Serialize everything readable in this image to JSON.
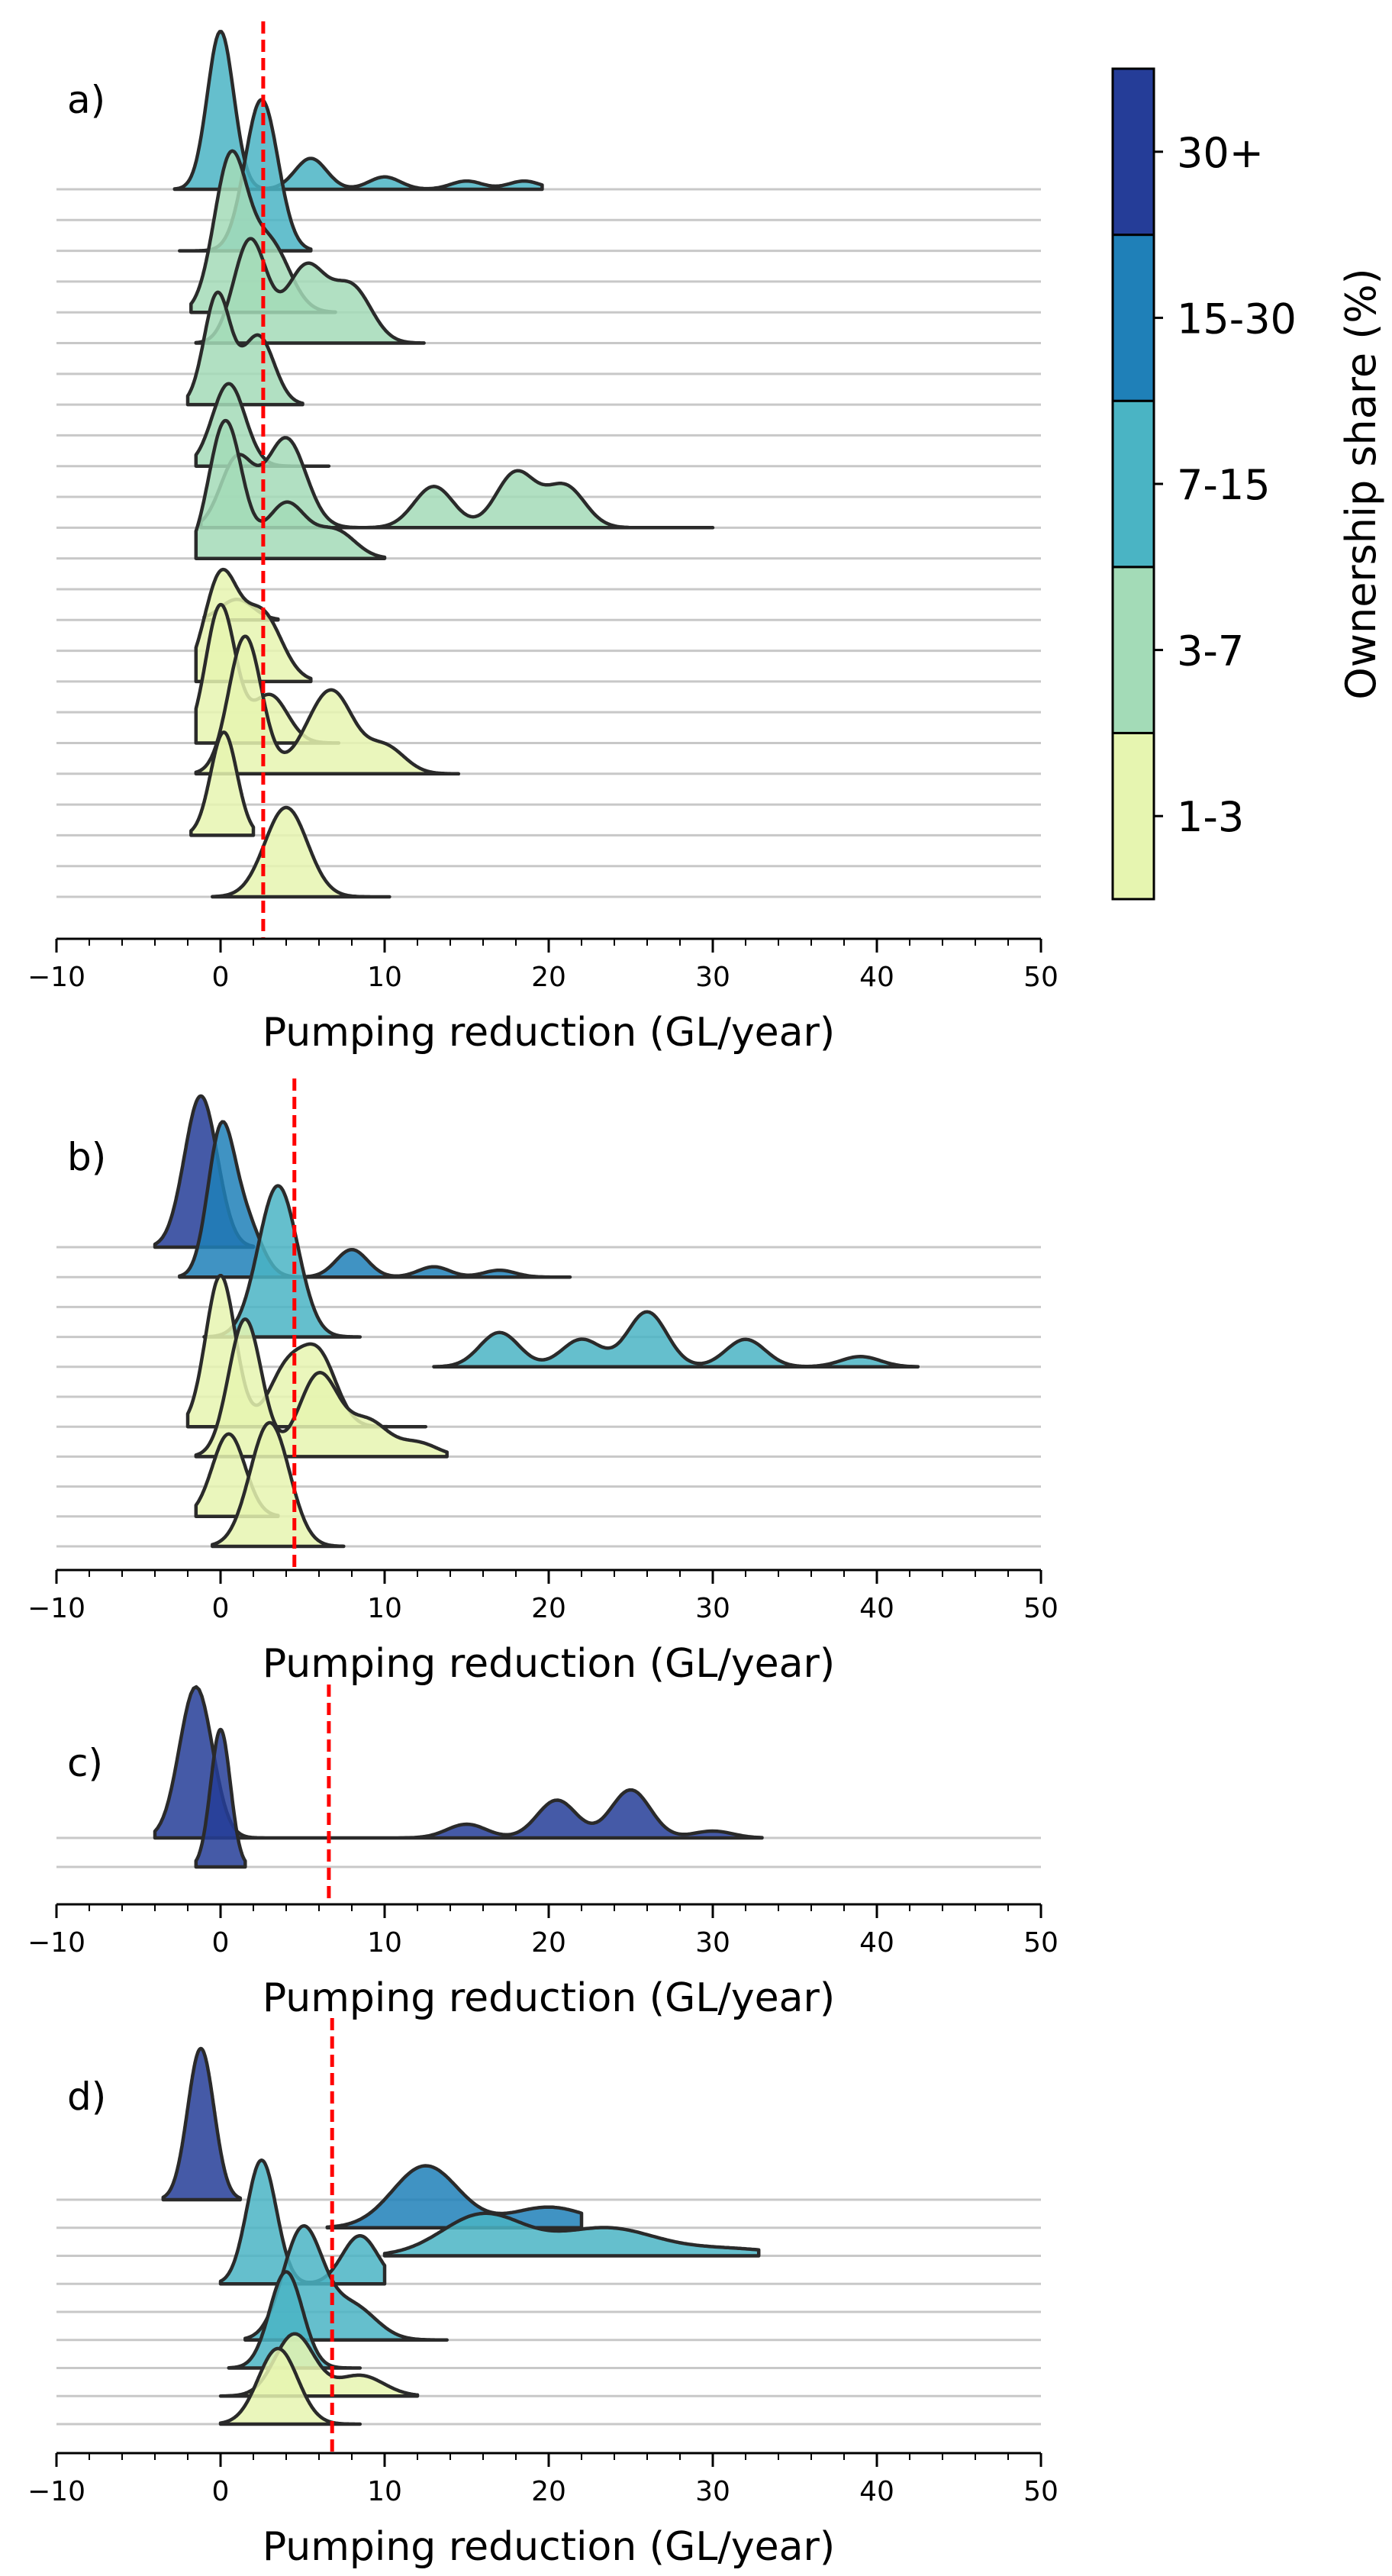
{
  "colorbar": {
    "label": "Ownership share (%)",
    "classes": [
      {
        "label": "1-3",
        "color": "#E6F5B0"
      },
      {
        "label": "3-7",
        "color": "#A3DBB7"
      },
      {
        "label": "7-15",
        "color": "#4AB4C4"
      },
      {
        "label": "15-30",
        "color": "#1F80B8"
      },
      {
        "label": "30+",
        "color": "#253D98"
      }
    ]
  },
  "chart_data": [
    {
      "type": "area",
      "panel_label": "a)",
      "xlabel": "Pumping reduction (GL/year)",
      "xlim": [
        -10,
        50
      ],
      "xticks": [
        "−10",
        "0",
        "10",
        "20",
        "30",
        "40",
        "50"
      ],
      "reference_line_x": 2.6,
      "reference_line_color": "#FF0000",
      "rows": 24,
      "series": [
        {
          "class": "7-15",
          "mode": 0.0,
          "width": 0.8,
          "peak": 2.3,
          "tail": [
            [
              5.5,
              0.45
            ],
            [
              10,
              0.18
            ],
            [
              15,
              0.12
            ],
            [
              18.5,
              0.12
            ]
          ],
          "min": -2.8,
          "max": 19.6
        },
        {
          "class": "7-15",
          "mode": 2.5,
          "width": 1.0,
          "peak": 2.2,
          "tail": [],
          "min": -2.5,
          "max": 5.5
        },
        {
          "class": "3-7",
          "mode": 0.6,
          "width": 1.0,
          "peak": 2.2,
          "tail": [
            [
              3.0,
              1.0
            ]
          ],
          "min": -1.8,
          "max": 7.0
        },
        {
          "class": "3-7",
          "mode": 1.8,
          "width": 1.0,
          "peak": 1.5,
          "tail": [
            [
              5.2,
              1.1
            ],
            [
              8.0,
              0.8
            ]
          ],
          "min": -1.5,
          "max": 12.4
        },
        {
          "class": "3-7",
          "mode": -0.2,
          "width": 0.8,
          "peak": 1.6,
          "tail": [
            [
              2.3,
              1.0
            ]
          ],
          "min": -2.0,
          "max": 5.0
        },
        {
          "class": "3-7",
          "mode": 0.5,
          "width": 1.0,
          "peak": 1.2,
          "tail": [],
          "min": -1.5,
          "max": 6.6
        },
        {
          "class": "3-7",
          "mode": 1.0,
          "width": 1.0,
          "peak": 1.0,
          "tail": [
            [
              4.0,
              1.3
            ],
            [
              13,
              0.6
            ],
            [
              18,
              0.8
            ],
            [
              21,
              0.6
            ]
          ],
          "min": -1.2,
          "max": 30.0
        },
        {
          "class": "3-7",
          "mode": 0.3,
          "width": 1.0,
          "peak": 2.0,
          "tail": [
            [
              4.0,
              0.8
            ],
            [
              7.0,
              0.4
            ]
          ],
          "min": -1.5,
          "max": 10.0
        },
        {
          "class": "1-3",
          "mode": 1.0,
          "width": 1.0,
          "peak": 0.3,
          "tail": [],
          "min": -1.0,
          "max": 3.5
        },
        {
          "class": "1-3",
          "mode": 0.0,
          "width": 1.0,
          "peak": 1.5,
          "tail": [
            [
              2.5,
              1.0
            ]
          ],
          "min": -1.5,
          "max": 5.5
        },
        {
          "class": "1-3",
          "mode": 0.0,
          "width": 0.9,
          "peak": 2.0,
          "tail": [
            [
              3.0,
              0.7
            ]
          ],
          "min": -1.5,
          "max": 7.2
        },
        {
          "class": "1-3",
          "mode": 1.5,
          "width": 1.0,
          "peak": 2.0,
          "tail": [
            [
              5.5,
              0.4
            ],
            [
              7.0,
              1.0
            ],
            [
              10.0,
              0.4
            ]
          ],
          "min": -1.5,
          "max": 14.5
        },
        {
          "class": "1-3",
          "mode": 0.2,
          "width": 0.8,
          "peak": 1.5,
          "tail": [],
          "min": -1.8,
          "max": 2.0
        },
        {
          "class": "1-3",
          "mode": 4.0,
          "width": 1.3,
          "peak": 1.3,
          "tail": [],
          "min": -0.5,
          "max": 10.3
        }
      ]
    },
    {
      "type": "area",
      "panel_label": "b)",
      "xlabel": "Pumping reduction (GL/year)",
      "xlim": [
        -10,
        50
      ],
      "xticks": [
        "−10",
        "0",
        "10",
        "20",
        "30",
        "40",
        "50"
      ],
      "reference_line_x": 4.5,
      "reference_line_color": "#FF0000",
      "rows": 11,
      "series": [
        {
          "class": "30+",
          "mode": -1.2,
          "width": 1.0,
          "peak": 2.2,
          "tail": [],
          "min": -4.0,
          "max": 2.0
        },
        {
          "class": "15-30",
          "mode": 0.0,
          "width": 0.8,
          "peak": 2.0,
          "tail": [
            [
              1.5,
              0.8
            ],
            [
              8.0,
              0.4
            ],
            [
              13.0,
              0.15
            ],
            [
              17.0,
              0.1
            ]
          ],
          "min": -2.5,
          "max": 21.3
        },
        {
          "class": "7-15",
          "mode": 3.5,
          "width": 1.2,
          "peak": 2.2,
          "tail": [],
          "min": -1.0,
          "max": 8.5
        },
        {
          "class": "7-15",
          "mode": 0.0,
          "width": 1.0,
          "peak": 0.3,
          "tail": [
            [
              17.0,
              0.5
            ],
            [
              22.0,
              0.4
            ],
            [
              26.0,
              0.8
            ],
            [
              32.0,
              0.4
            ],
            [
              39.0,
              0.15
            ]
          ],
          "min": 13.0,
          "max": 42.5
        },
        {
          "class": "1-3",
          "mode": 0.0,
          "width": 0.9,
          "peak": 2.2,
          "tail": [
            [
              4.0,
              0.8
            ],
            [
              6.0,
              1.0
            ]
          ],
          "min": -2.0,
          "max": 12.5
        },
        {
          "class": "1-3",
          "mode": 1.5,
          "width": 1.0,
          "peak": 2.0,
          "tail": [
            [
              6.0,
              1.2
            ],
            [
              9.0,
              0.5
            ],
            [
              12.0,
              0.2
            ]
          ],
          "min": -1.5,
          "max": 13.8
        },
        {
          "class": "1-3",
          "mode": 0.5,
          "width": 1.0,
          "peak": 1.2,
          "tail": [],
          "min": -1.5,
          "max": 3.5
        },
        {
          "class": "1-3",
          "mode": 3.0,
          "width": 1.2,
          "peak": 1.8,
          "tail": [],
          "min": -0.5,
          "max": 7.5
        }
      ]
    },
    {
      "type": "area",
      "panel_label": "c)",
      "xlabel": "Pumping reduction (GL/year)",
      "xlim": [
        -10,
        50
      ],
      "xticks": [
        "−10",
        "0",
        "10",
        "20",
        "30",
        "40",
        "50"
      ],
      "reference_line_x": 6.6,
      "reference_line_color": "#FF0000",
      "rows": 2,
      "series": [
        {
          "class": "30+",
          "mode": -1.5,
          "width": 1.0,
          "peak": 2.2,
          "tail": [
            [
              15.0,
              0.2
            ],
            [
              20.5,
              0.55
            ],
            [
              25.0,
              0.7
            ],
            [
              30.0,
              0.1
            ]
          ],
          "min": -4.0,
          "max": 33.0
        },
        {
          "class": "30+",
          "mode": 0.0,
          "width": 0.6,
          "peak": 2.0,
          "tail": [],
          "min": -1.5,
          "max": 1.5
        }
      ]
    },
    {
      "type": "area",
      "panel_label": "d)",
      "xlabel": "Pumping reduction (GL/year)",
      "xlim": [
        -10,
        50
      ],
      "xticks": [
        "−10",
        "0",
        "10",
        "20",
        "30",
        "40",
        "50"
      ],
      "reference_line_x": 6.8,
      "reference_line_color": "#FF0000",
      "rows": 9,
      "series": [
        {
          "class": "30+",
          "mode": -1.2,
          "width": 0.8,
          "peak": 2.2,
          "tail": [],
          "min": -3.5,
          "max": 1.2
        },
        {
          "class": "15-30",
          "mode": 12.5,
          "width": 2.0,
          "peak": 0.9,
          "tail": [
            [
              20.0,
              0.3
            ]
          ],
          "min": 6.5,
          "max": 22.0
        },
        {
          "class": "7-15",
          "mode": 16.0,
          "width": 2.5,
          "peak": 0.6,
          "tail": [
            [
              23.5,
              0.4
            ],
            [
              31.0,
              0.1
            ]
          ],
          "min": 10.0,
          "max": 32.8
        },
        {
          "class": "7-15",
          "mode": 2.5,
          "width": 0.9,
          "peak": 1.8,
          "tail": [
            [
              8.5,
              0.7
            ]
          ],
          "min": 0.0,
          "max": 10.0
        },
        {
          "class": "7-15",
          "mode": 5.0,
          "width": 1.2,
          "peak": 1.6,
          "tail": [
            [
              8.0,
              0.5
            ]
          ],
          "min": 1.5,
          "max": 13.8
        },
        {
          "class": "7-15",
          "mode": 4.0,
          "width": 1.0,
          "peak": 1.4,
          "tail": [],
          "min": 0.5,
          "max": 8.5
        },
        {
          "class": "1-3",
          "mode": 4.5,
          "width": 1.2,
          "peak": 0.9,
          "tail": [
            [
              8.5,
              0.3
            ]
          ],
          "min": 0.0,
          "max": 12.0
        },
        {
          "class": "1-3",
          "mode": 3.5,
          "width": 1.2,
          "peak": 1.1,
          "tail": [],
          "min": 0.0,
          "max": 8.5
        }
      ]
    }
  ]
}
